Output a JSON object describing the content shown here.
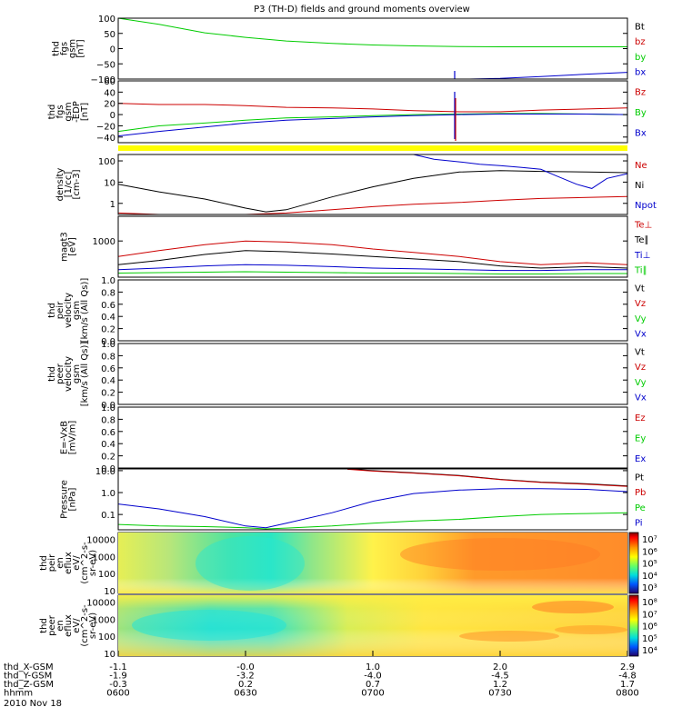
{
  "title": "P3 (TH-D) fields and ground moments overview",
  "chart_data": {
    "type": "line",
    "title": "P3 (TH-D) fields and ground moments overview",
    "date": "2010 Nov 18",
    "x_range": [
      "0600",
      "0800"
    ],
    "x_ticks": [
      "0600",
      "0630",
      "0700",
      "0730",
      "0800"
    ],
    "ephemeris": [
      {
        "label": "thd_X-GSM",
        "values": [
          "-1.1",
          "-0.0",
          "1.0",
          "2.0",
          "2.9"
        ]
      },
      {
        "label": "thd_Y-GSM",
        "values": [
          "-1.9",
          "-3.2",
          "-4.0",
          "-4.5",
          "-4.8"
        ]
      },
      {
        "label": "thd_Z-GSM",
        "values": [
          "-0.3",
          "0.2",
          "0.7",
          "1.2",
          "1.7"
        ]
      },
      {
        "label": "hhmm",
        "values": [
          "0600",
          "0630",
          "0700",
          "0730",
          "0800"
        ]
      }
    ],
    "panels": [
      {
        "ylabel": [
          "thd",
          "fgs",
          "gsm",
          "[nT]"
        ],
        "ylim": [
          -100,
          100
        ],
        "log": false,
        "yticks": [
          "100",
          "50",
          "0",
          "−50",
          "−100"
        ],
        "ytick_values": [
          100,
          50,
          0,
          -50,
          -100
        ],
        "legend": [
          {
            "name": "Bt",
            "color": "#000000"
          },
          {
            "name": "bz",
            "color": "#cc0000"
          },
          {
            "name": "by",
            "color": "#00cc00"
          },
          {
            "name": "bx",
            "color": "#0000cc"
          }
        ],
        "series": [
          {
            "name": "by",
            "color": "#00cc00",
            "x": [
              0,
              0.08,
              0.17,
              0.25,
              0.33,
              0.42,
              0.5,
              0.58,
              0.67,
              0.75,
              0.83,
              0.92,
              1.0
            ],
            "y": [
              100,
              80,
              52,
              37,
              25,
              17,
              12,
              9,
              7,
              6,
              6,
              6,
              6
            ]
          },
          {
            "name": "bx",
            "color": "#0000cc",
            "x": [
              0.69,
              0.75,
              0.83,
              0.92,
              1.0
            ],
            "y": [
              -100,
              -98,
              -92,
              -84,
              -78
            ]
          }
        ]
      },
      {
        "ylabel": [
          "thd",
          "fgs",
          "gsm",
          "-EDP",
          "[nT]"
        ],
        "ylim": [
          -50,
          60
        ],
        "log": false,
        "yticks": [
          "60",
          "40",
          "20",
          "0",
          "−20",
          "−40"
        ],
        "ytick_values": [
          60,
          40,
          20,
          0,
          -20,
          -40
        ],
        "legend": [
          {
            "name": "Bz",
            "color": "#cc0000"
          },
          {
            "name": "By",
            "color": "#00cc00"
          },
          {
            "name": "Bx",
            "color": "#0000cc"
          }
        ],
        "series": [
          {
            "name": "Bz",
            "color": "#cc0000",
            "x": [
              0,
              0.08,
              0.17,
              0.25,
              0.33,
              0.42,
              0.5,
              0.58,
              0.67,
              0.75,
              0.83,
              0.92,
              1.0
            ],
            "y": [
              20,
              18,
              18,
              16,
              13,
              12,
              10,
              7,
              5,
              5,
              8,
              10,
              12
            ]
          },
          {
            "name": "By",
            "color": "#00cc00",
            "x": [
              0,
              0.08,
              0.17,
              0.25,
              0.33,
              0.42,
              0.5,
              0.58,
              0.67,
              0.75,
              0.83,
              0.92,
              1.0
            ],
            "y": [
              -30,
              -20,
              -15,
              -10,
              -6,
              -4,
              -2,
              0,
              1,
              2,
              2,
              1,
              0
            ]
          },
          {
            "name": "Bx",
            "color": "#0000cc",
            "x": [
              0,
              0.08,
              0.17,
              0.25,
              0.33,
              0.42,
              0.5,
              0.58,
              0.67,
              0.75,
              0.83,
              0.92,
              1.0
            ],
            "y": [
              -38,
              -30,
              -22,
              -15,
              -10,
              -7,
              -4,
              -2,
              0,
              1,
              1,
              1,
              0
            ]
          }
        ]
      },
      {
        "ylabel": [
          "density",
          "[1/cc]",
          "[cm-3]"
        ],
        "ylim": [
          0.3,
          200
        ],
        "log": true,
        "yticks": [
          "100",
          "10",
          "1"
        ],
        "ytick_values": [
          100,
          10,
          1
        ],
        "legend": [
          {
            "name": "Ne",
            "color": "#cc0000"
          },
          {
            "name": "Ni",
            "color": "#000000"
          },
          {
            "name": "Npot",
            "color": "#0000cc"
          }
        ],
        "series": [
          {
            "name": "Ni",
            "color": "#000000",
            "x": [
              0,
              0.08,
              0.17,
              0.25,
              0.29,
              0.33,
              0.42,
              0.5,
              0.58,
              0.67,
              0.75,
              0.83,
              0.92,
              1.0
            ],
            "y": [
              8,
              3.5,
              1.6,
              0.6,
              0.4,
              0.5,
              2,
              6,
              15,
              30,
              35,
              32,
              30,
              28
            ]
          },
          {
            "name": "Ne",
            "color": "#cc0000",
            "x": [
              0,
              0.08,
              0.17,
              0.25,
              0.33,
              0.42,
              0.5,
              0.58,
              0.67,
              0.75,
              0.83,
              0.92,
              1.0
            ],
            "y": [
              0.35,
              0.3,
              0.3,
              0.3,
              0.35,
              0.5,
              0.7,
              0.9,
              1.1,
              1.4,
              1.7,
              1.9,
              2.1
            ]
          },
          {
            "name": "Npot",
            "color": "#0000cc",
            "x": [
              0.58,
              0.62,
              0.67,
              0.71,
              0.75,
              0.79,
              0.83,
              0.86,
              0.9,
              0.93,
              0.96,
              1.0
            ],
            "y": [
              200,
              120,
              90,
              70,
              60,
              50,
              40,
              20,
              8,
              5,
              15,
              25
            ]
          }
        ]
      },
      {
        "ylabel": [
          "magt3",
          "[eV]"
        ],
        "ylim": [
          200,
          3000
        ],
        "log": true,
        "yticks": [
          "1000"
        ],
        "ytick_values": [
          1000
        ],
        "legend": [
          {
            "name": "Te⊥",
            "color": "#cc0000"
          },
          {
            "name": "Te∥",
            "color": "#000000"
          },
          {
            "name": "Ti⊥",
            "color": "#0000cc"
          },
          {
            "name": "Ti∥",
            "color": "#00cc00"
          }
        ],
        "series": [
          {
            "name": "Te⊥",
            "color": "#cc0000",
            "x": [
              0,
              0.08,
              0.17,
              0.25,
              0.33,
              0.42,
              0.5,
              0.58,
              0.67,
              0.75,
              0.83,
              0.92,
              1.0
            ],
            "y": [
              500,
              650,
              850,
              1000,
              950,
              850,
              700,
              600,
              500,
              400,
              350,
              380,
              350
            ]
          },
          {
            "name": "Te∥",
            "color": "#000000",
            "x": [
              0,
              0.08,
              0.17,
              0.25,
              0.33,
              0.42,
              0.5,
              0.58,
              0.67,
              0.75,
              0.83,
              0.92,
              1.0
            ],
            "y": [
              350,
              420,
              550,
              650,
              620,
              560,
              500,
              450,
              400,
              330,
              300,
              320,
              300
            ]
          },
          {
            "name": "Ti⊥",
            "color": "#0000cc",
            "x": [
              0,
              0.08,
              0.17,
              0.25,
              0.33,
              0.42,
              0.5,
              0.58,
              0.67,
              0.75,
              0.83,
              0.92,
              1.0
            ],
            "y": [
              280,
              300,
              330,
              350,
              340,
              320,
              300,
              290,
              280,
              270,
              270,
              280,
              280
            ]
          },
          {
            "name": "Ti∥",
            "color": "#00cc00",
            "x": [
              0,
              0.08,
              0.17,
              0.25,
              0.33,
              0.42,
              0.5,
              0.58,
              0.67,
              0.75,
              0.83,
              0.92,
              1.0
            ],
            "y": [
              240,
              245,
              250,
              255,
              250,
              245,
              240,
              240,
              235,
              230,
              230,
              235,
              235
            ]
          }
        ]
      },
      {
        "ylabel": [
          "thd",
          "peir",
          "velocity",
          "gsm",
          "[km/s (All Qs)]"
        ],
        "ylim": [
          0,
          1
        ],
        "log": false,
        "yticks": [
          "1.0",
          "0.8",
          "0.6",
          "0.4",
          "0.2",
          "0.0"
        ],
        "ytick_values": [
          1,
          0.8,
          0.6,
          0.4,
          0.2,
          0
        ],
        "legend": [
          {
            "name": "Vt",
            "color": "#000000"
          },
          {
            "name": "Vz",
            "color": "#cc0000"
          },
          {
            "name": "Vy",
            "color": "#00cc00"
          },
          {
            "name": "Vx",
            "color": "#0000cc"
          }
        ],
        "series": []
      },
      {
        "ylabel": [
          "thd",
          "peer",
          "velocity",
          "gsm",
          "[km/s (All Qs)]"
        ],
        "ylim": [
          0,
          1
        ],
        "log": false,
        "yticks": [
          "1.0",
          "0.8",
          "0.6",
          "0.4",
          "0.2",
          "0.0"
        ],
        "ytick_values": [
          1,
          0.8,
          0.6,
          0.4,
          0.2,
          0
        ],
        "legend": [
          {
            "name": "Vt",
            "color": "#000000"
          },
          {
            "name": "Vz",
            "color": "#cc0000"
          },
          {
            "name": "Vy",
            "color": "#00cc00"
          },
          {
            "name": "Vx",
            "color": "#0000cc"
          }
        ],
        "series": []
      },
      {
        "ylabel": [
          "E=-VxB",
          "[mV/m]"
        ],
        "ylim": [
          0,
          1
        ],
        "log": false,
        "yticks": [
          "1.0",
          "0.8",
          "0.6",
          "0.4",
          "0.2",
          "0.0"
        ],
        "ytick_values": [
          1,
          0.8,
          0.6,
          0.4,
          0.2,
          0
        ],
        "legend": [
          {
            "name": "Ez",
            "color": "#cc0000"
          },
          {
            "name": "Ey",
            "color": "#00cc00"
          },
          {
            "name": "Ex",
            "color": "#0000cc"
          }
        ],
        "series": []
      },
      {
        "ylabel": [
          "Pressure",
          "[nPa]"
        ],
        "ylim": [
          0.02,
          12
        ],
        "log": true,
        "yticks": [
          "10.0",
          "1.0",
          "0.1"
        ],
        "ytick_values": [
          10,
          1,
          0.1
        ],
        "legend": [
          {
            "name": "Pt",
            "color": "#000000"
          },
          {
            "name": "Pb",
            "color": "#cc0000"
          },
          {
            "name": "Pe",
            "color": "#00cc00"
          },
          {
            "name": "Pi",
            "color": "#0000cc"
          }
        ],
        "series": [
          {
            "name": "Pt",
            "color": "#000000",
            "x": [
              0.45,
              0.5,
              0.58,
              0.67,
              0.75,
              0.83,
              0.92,
              1.0
            ],
            "y": [
              12,
              10,
              8,
              6,
              4,
              3,
              2.5,
              2
            ]
          },
          {
            "name": "Pb",
            "color": "#cc0000",
            "x": [
              0.45,
              0.5,
              0.58,
              0.67,
              0.75,
              0.83,
              0.92,
              1.0
            ],
            "y": [
              11.5,
              9.5,
              7.7,
              5.8,
              3.9,
              2.9,
              2.4,
              1.9
            ]
          },
          {
            "name": "Pi",
            "color": "#0000cc",
            "x": [
              0,
              0.08,
              0.17,
              0.25,
              0.29,
              0.33,
              0.42,
              0.5,
              0.58,
              0.67,
              0.75,
              0.83,
              0.92,
              1.0
            ],
            "y": [
              0.3,
              0.18,
              0.08,
              0.03,
              0.025,
              0.04,
              0.12,
              0.4,
              0.9,
              1.3,
              1.5,
              1.5,
              1.4,
              1.1
            ]
          },
          {
            "name": "Pe",
            "color": "#00cc00",
            "x": [
              0,
              0.08,
              0.17,
              0.25,
              0.29,
              0.33,
              0.42,
              0.5,
              0.58,
              0.67,
              0.75,
              0.83,
              0.92,
              1.0
            ],
            "y": [
              0.035,
              0.03,
              0.028,
              0.025,
              0.022,
              0.024,
              0.03,
              0.04,
              0.05,
              0.06,
              0.08,
              0.1,
              0.11,
              0.12
            ]
          }
        ]
      },
      {
        "type": "heatmap",
        "ylabel": [
          "thd",
          "peir",
          "en",
          "eflux",
          "eV/",
          "(cm^2-s-",
          "sr-eV)"
        ],
        "ylim": [
          7,
          25000
        ],
        "log": true,
        "yticks": [
          "10000",
          "1000",
          "100",
          "10"
        ],
        "ytick_values": [
          10000,
          1000,
          100,
          10
        ],
        "colorbar_ticks": [
          "10⁷",
          "10⁶",
          "10⁵",
          "10⁴",
          "10³"
        ]
      },
      {
        "type": "heatmap",
        "ylabel": [
          "thd",
          "peer",
          "en",
          "eflux",
          "eV/",
          "(cm^2-s-",
          "sr-eV)"
        ],
        "ylim": [
          7,
          25000
        ],
        "log": true,
        "yticks": [
          "10000",
          "1000",
          "100",
          "10"
        ],
        "ytick_values": [
          10000,
          1000,
          100,
          10
        ],
        "colorbar_ticks": [
          "10⁸",
          "10⁷",
          "10⁶",
          "10⁵",
          "10⁴"
        ]
      }
    ]
  }
}
